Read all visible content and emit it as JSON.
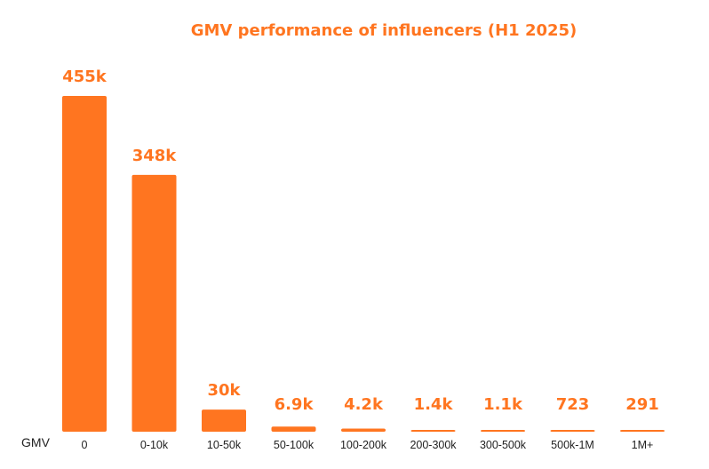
{
  "chart_data": {
    "type": "bar",
    "title": "GMV performance of influencers (H1 2025)",
    "xlabel": "GMV",
    "ylabel": "",
    "categories": [
      "0",
      "0-10k",
      "10-50k",
      "50-100k",
      "100-200k",
      "200-300k",
      "300-500k",
      "500k-1M",
      "1M+"
    ],
    "values": [
      455000,
      348000,
      30000,
      6900,
      4200,
      1400,
      1100,
      723,
      291
    ],
    "data_labels": [
      "455k",
      "348k",
      "30k",
      "6.9k",
      "4.2k",
      "1.4k",
      "1.1k",
      "723",
      "291"
    ],
    "ylim": [
      0,
      455000
    ],
    "grid": false,
    "legend": "none",
    "colors": {
      "bar": "#ff7520",
      "title": "#ff7520",
      "value_label": "#ff7520",
      "tick_label": "#222222"
    }
  }
}
